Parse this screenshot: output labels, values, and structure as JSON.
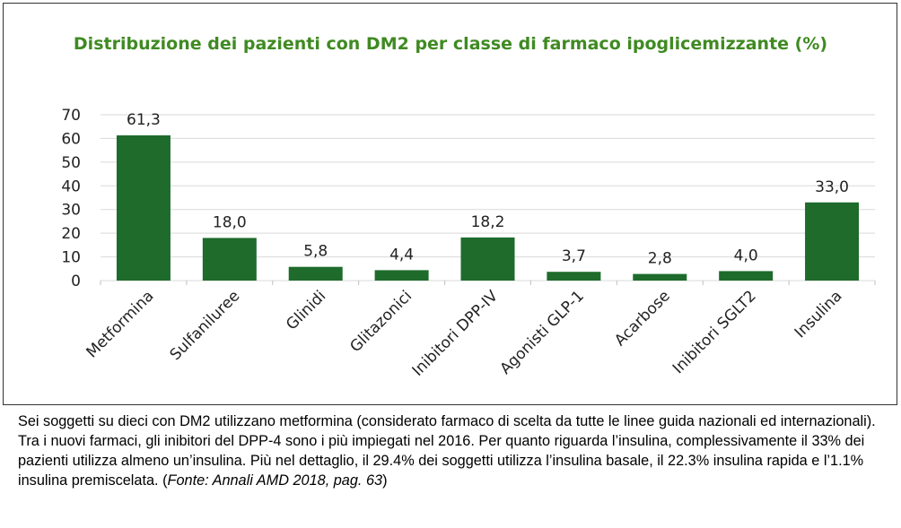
{
  "chart_data": {
    "type": "bar",
    "title": "Distribuzione dei pazienti con DM2 per classe di farmaco ipoglicemizzante (%)",
    "categories": [
      "Metformina",
      "Sulfaniluree",
      "Glinidi",
      "Glitazonici",
      "Inibitori DPP-IV",
      "Agonisti GLP-1",
      "Acarbose",
      "Inibitori SGLT2",
      "Insulina"
    ],
    "values": [
      61.3,
      18.0,
      5.8,
      4.4,
      18.2,
      3.7,
      2.8,
      4.0,
      33.0
    ],
    "value_labels": [
      "61,3",
      "18,0",
      "5,8",
      "4,4",
      "18,2",
      "3,7",
      "2,8",
      "4,0",
      "33,0"
    ],
    "ylim": [
      0,
      70
    ],
    "yticks": [
      "0",
      "10",
      "20",
      "30",
      "40",
      "50",
      "60",
      "70"
    ],
    "xlabel": "",
    "ylabel": "",
    "grid": true,
    "bar_color": "#1e6b2c",
    "title_color": "#3f8a22"
  },
  "caption": {
    "text": "Sei soggetti su dieci con DM2 utilizzano metformina (considerato farmaco di scelta da tutte le linee guida nazionali ed internazionali). Tra i nuovi farmaci, gli inibitori del DPP-4 sono i più impiegati nel 2016. Per quanto riguarda l’insulina, complessivamente il 33% dei pazienti utilizza almeno un’insulina. Più nel dettaglio, il 29.4% dei soggetti utilizza l’insulina basale, il 22.3% insulina rapida e l’1.1% insulina premiscelata. (",
    "source": "Fonte: Annali AMD 2018, pag. 63",
    "closing": ")"
  }
}
